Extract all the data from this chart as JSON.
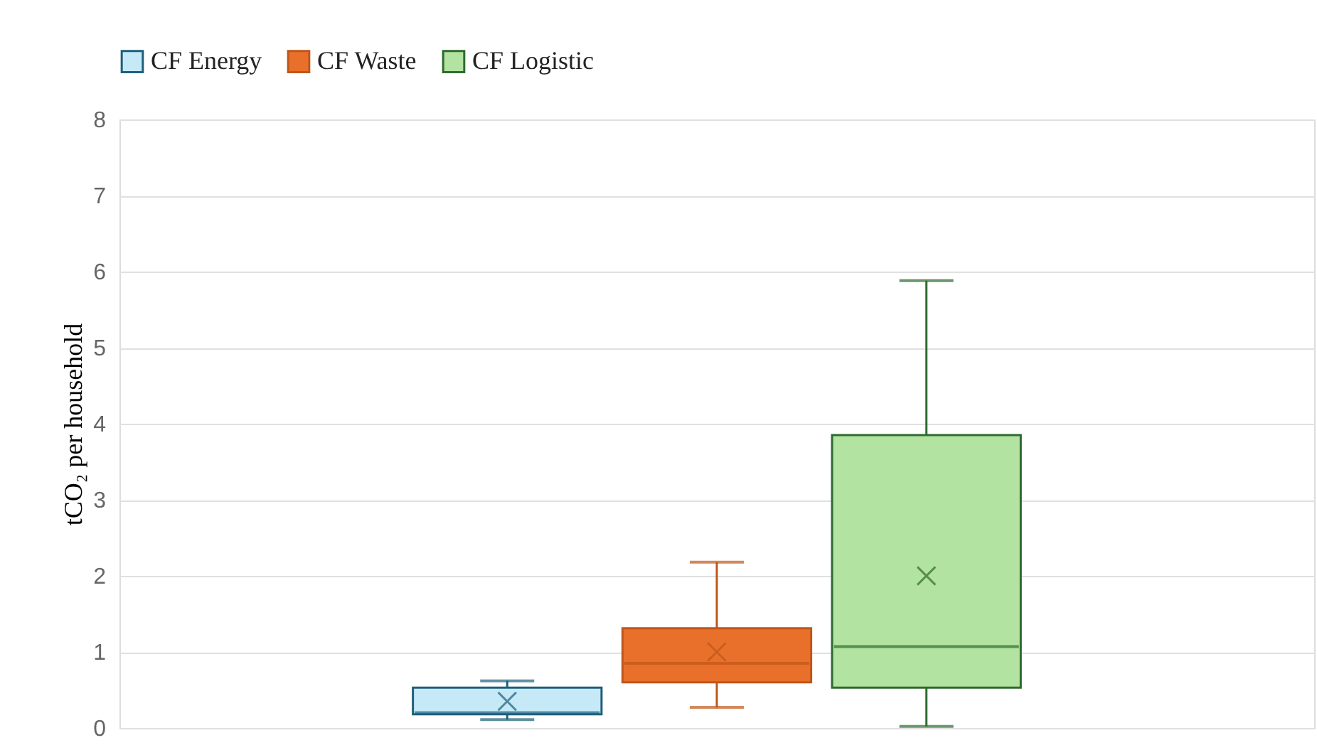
{
  "chart_data": {
    "type": "box",
    "ylabel": "tCO₂ per household",
    "categories": [
      null
    ],
    "series": [
      {
        "name": "CF Energy",
        "color": "#c6e9f8",
        "boxes": [
          {
            "low": 0.11,
            "q1": 0.18,
            "median": 0.2,
            "q3": 0.53,
            "high": 0.62,
            "mean": 0.35
          }
        ]
      },
      {
        "name": "CF Waste",
        "color": "#e8702a",
        "boxes": [
          {
            "low": 0.27,
            "q1": 0.6,
            "median": 0.85,
            "q3": 1.31,
            "high": 2.18,
            "mean": 1.0
          }
        ]
      },
      {
        "name": "CF Logistic",
        "color": "#b3e3a0",
        "boxes": [
          {
            "low": 0.02,
            "q1": 0.53,
            "median": 1.07,
            "q3": 3.85,
            "high": 5.88,
            "mean": 2.0
          }
        ]
      }
    ],
    "ylim": [
      0,
      8
    ],
    "yticks": [
      0,
      1,
      2,
      3,
      4,
      5,
      6,
      7,
      8
    ],
    "grid": "y",
    "legend": "top",
    "tick_labels": "y",
    "marker": "cross"
  }
}
